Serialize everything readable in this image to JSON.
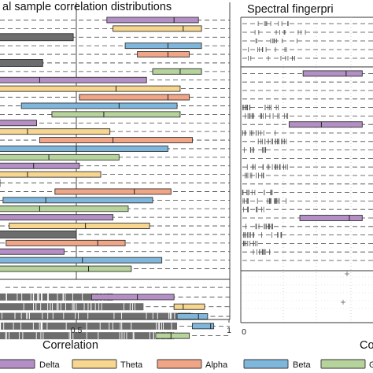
{
  "colors": {
    "Delta": "#b48fc6",
    "Theta": "#f7d68f",
    "Alpha": "#f0a586",
    "Beta": "#7fb6dc",
    "Gamma": "#b5d39a",
    "Broadband": "#6d6d6d"
  },
  "legend": [
    {
      "name": "Delta",
      "color": "#b48fc6"
    },
    {
      "name": "Theta",
      "color": "#f7d68f"
    },
    {
      "name": "Alpha",
      "color": "#f0a586"
    },
    {
      "name": "Beta",
      "color": "#7fb6dc"
    },
    {
      "name": "G",
      "color": "#b5d39a"
    }
  ],
  "chart_data": [
    {
      "type": "box",
      "title": "al sample correlation distributions",
      "xlabel": "Correlation",
      "xlim": [
        0,
        1
      ],
      "x_ticks": [
        {
          "value": 0.5,
          "label": "0.5"
        },
        {
          "value": 1,
          "label": "1"
        }
      ],
      "reference_line": 0.5,
      "grid": "dashed horizontal row lines",
      "rows": [
        {
          "band": "Delta",
          "q1": 0.6,
          "median": 0.82,
          "q3": 0.9,
          "whisker_low": 0.6,
          "whisker_high": 0.9
        },
        {
          "band": "Theta",
          "q1": 0.62,
          "median": 0.85,
          "q3": 0.91,
          "whisker_low": 0.62,
          "whisker_high": 0.91
        },
        {
          "band": "Broadband",
          "q1": 0.0,
          "median": 0.49,
          "q3": 0.49,
          "whisker_low": 0.0,
          "whisker_high": 0.49
        },
        {
          "band": "Beta",
          "q1": 0.66,
          "median": 0.8,
          "q3": 0.91,
          "whisker_low": 0.66,
          "whisker_high": 0.91
        },
        {
          "band": "Alpha",
          "q1": 0.7,
          "median": 0.8,
          "q3": 0.87,
          "whisker_low": 0.7,
          "whisker_high": 0.87
        },
        {
          "band": "Broadband",
          "q1": 0.0,
          "median": 0.39,
          "q3": 0.39,
          "whisker_low": 0.0,
          "whisker_high": 0.39
        },
        {
          "band": "Gamma",
          "q1": 0.75,
          "median": 0.84,
          "q3": 0.91,
          "whisker_low": 0.75,
          "whisker_high": 0.91
        },
        {
          "band": "Delta",
          "q1": 0.0,
          "median": 0.38,
          "q3": 0.73,
          "whisker_low": 0.0,
          "whisker_high": 0.73
        },
        {
          "band": "Theta",
          "q1": 0.19,
          "median": 0.63,
          "q3": 0.84,
          "whisker_low": 0.19,
          "whisker_high": 0.84
        },
        {
          "band": "Alpha",
          "q1": 0.51,
          "median": 0.8,
          "q3": 0.87,
          "whisker_low": 0.51,
          "whisker_high": 0.87
        },
        {
          "band": "Beta",
          "q1": 0.32,
          "median": 0.64,
          "q3": 0.83,
          "whisker_low": 0.32,
          "whisker_high": 0.83
        },
        {
          "band": "Gamma",
          "q1": 0.42,
          "median": 0.59,
          "q3": 0.84,
          "whisker_low": 0.42,
          "whisker_high": 0.84
        },
        {
          "band": "Delta",
          "q1": 0.0,
          "median": 0.14,
          "q3": 0.37,
          "whisker_low": 0.0,
          "whisker_high": 0.37
        },
        {
          "band": "Theta",
          "q1": 0.0,
          "median": 0.34,
          "q3": 0.61,
          "whisker_low": 0.0,
          "whisker_high": 0.61
        },
        {
          "band": "Alpha",
          "q1": 0.38,
          "median": 0.62,
          "q3": 0.88,
          "whisker_low": 0.38,
          "whisker_high": 0.88
        },
        {
          "band": "Beta",
          "q1": 0.15,
          "median": 0.5,
          "q3": 0.8,
          "whisker_low": 0.15,
          "whisker_high": 0.8
        },
        {
          "band": "Gamma",
          "q1": 0.18,
          "median": 0.41,
          "q3": 0.64,
          "whisker_low": 0.18,
          "whisker_high": 0.64
        },
        {
          "band": "Delta",
          "q1": 0.0,
          "median": 0.36,
          "q3": 0.51,
          "whisker_low": 0.0,
          "whisker_high": 0.51
        },
        {
          "band": "Theta",
          "q1": 0.14,
          "median": 0.34,
          "q3": 0.58,
          "whisker_low": 0.14,
          "whisker_high": 0.58
        },
        {
          "band": "Broadband",
          "q1": 0.0,
          "median": 0.03,
          "q3": 0.03,
          "whisker_low": 0.0,
          "whisker_high": 0.03
        },
        {
          "band": "Alpha",
          "q1": 0.43,
          "median": 0.69,
          "q3": 0.81,
          "whisker_low": 0.43,
          "whisker_high": 0.81
        },
        {
          "band": "Beta",
          "q1": 0.26,
          "median": 0.4,
          "q3": 0.75,
          "whisker_low": 0.26,
          "whisker_high": 0.75
        },
        {
          "band": "Gamma",
          "q1": 0.0,
          "median": 0.38,
          "q3": 0.67,
          "whisker_low": 0.0,
          "whisker_high": 0.67
        },
        {
          "band": "Delta",
          "q1": 0.0,
          "median": 0.08,
          "q3": 0.62,
          "whisker_low": 0.0,
          "whisker_high": 0.62
        },
        {
          "band": "Theta",
          "q1": 0.28,
          "median": 0.53,
          "q3": 0.74,
          "whisker_low": 0.28,
          "whisker_high": 0.74
        },
        {
          "band": "Broadband",
          "q1": 0.0,
          "median": 0.5,
          "q3": 0.5,
          "whisker_low": 0.0,
          "whisker_high": 0.5
        },
        {
          "band": "Alpha",
          "q1": 0.27,
          "median": 0.57,
          "q3": 0.66,
          "whisker_low": 0.27,
          "whisker_high": 0.66
        },
        {
          "band": "Delta",
          "q1": 0.0,
          "median": 0.01,
          "q3": 0.46,
          "whisker_low": 0.0,
          "whisker_high": 0.46
        },
        {
          "band": "Beta",
          "q1": 0.14,
          "median": 0.52,
          "q3": 0.78,
          "whisker_low": 0.14,
          "whisker_high": 0.78
        },
        {
          "band": "Gamma",
          "q1": 0.21,
          "median": 0.54,
          "q3": 0.68,
          "whisker_low": 0.21,
          "whisker_high": 0.68
        }
      ],
      "broadband_panel": {
        "rows": [
          {
            "bars_end": 0.26,
            "box": null
          },
          {
            "bars_end": 0.62,
            "box": {
              "band": "Delta",
              "q1": 0.55,
              "median": 0.7,
              "q3": 0.82
            }
          },
          {
            "bars_end": 0.72,
            "box": {
              "band": "Theta",
              "q1": 0.82,
              "median": 0.85,
              "q3": 0.92
            }
          },
          {
            "bars_end": 0.88,
            "box": {
              "band": "Beta",
              "q1": 0.83,
              "median": 0.9,
              "q3": 0.93
            }
          },
          {
            "bars_end": 0.83,
            "box": {
              "band": "Beta",
              "q1": 0.88,
              "median": 0.94,
              "q3": 0.95
            }
          },
          {
            "bars_end": 0.82,
            "box": {
              "band": "Gamma",
              "q1": 0.76,
              "median": 0.81,
              "q3": 0.87
            }
          }
        ]
      }
    },
    {
      "type": "box",
      "title": "Spectral fingerpri",
      "xlabel": "Co",
      "x_ticks": [
        {
          "value": 0,
          "label": "0"
        }
      ],
      "grid": "dashed horizontal row lines, dotted vertical gridlines",
      "rows": [
        {
          "band": "Delta",
          "q1": 0.55,
          "median": 0.95,
          "q3": 1.1
        },
        {
          "band": "Delta",
          "q1": 0.42,
          "median": 0.72,
          "q3": 1.1
        },
        {
          "band": "Delta",
          "q1": 0.52,
          "median": 0.98,
          "q3": 1.1
        }
      ]
    }
  ]
}
